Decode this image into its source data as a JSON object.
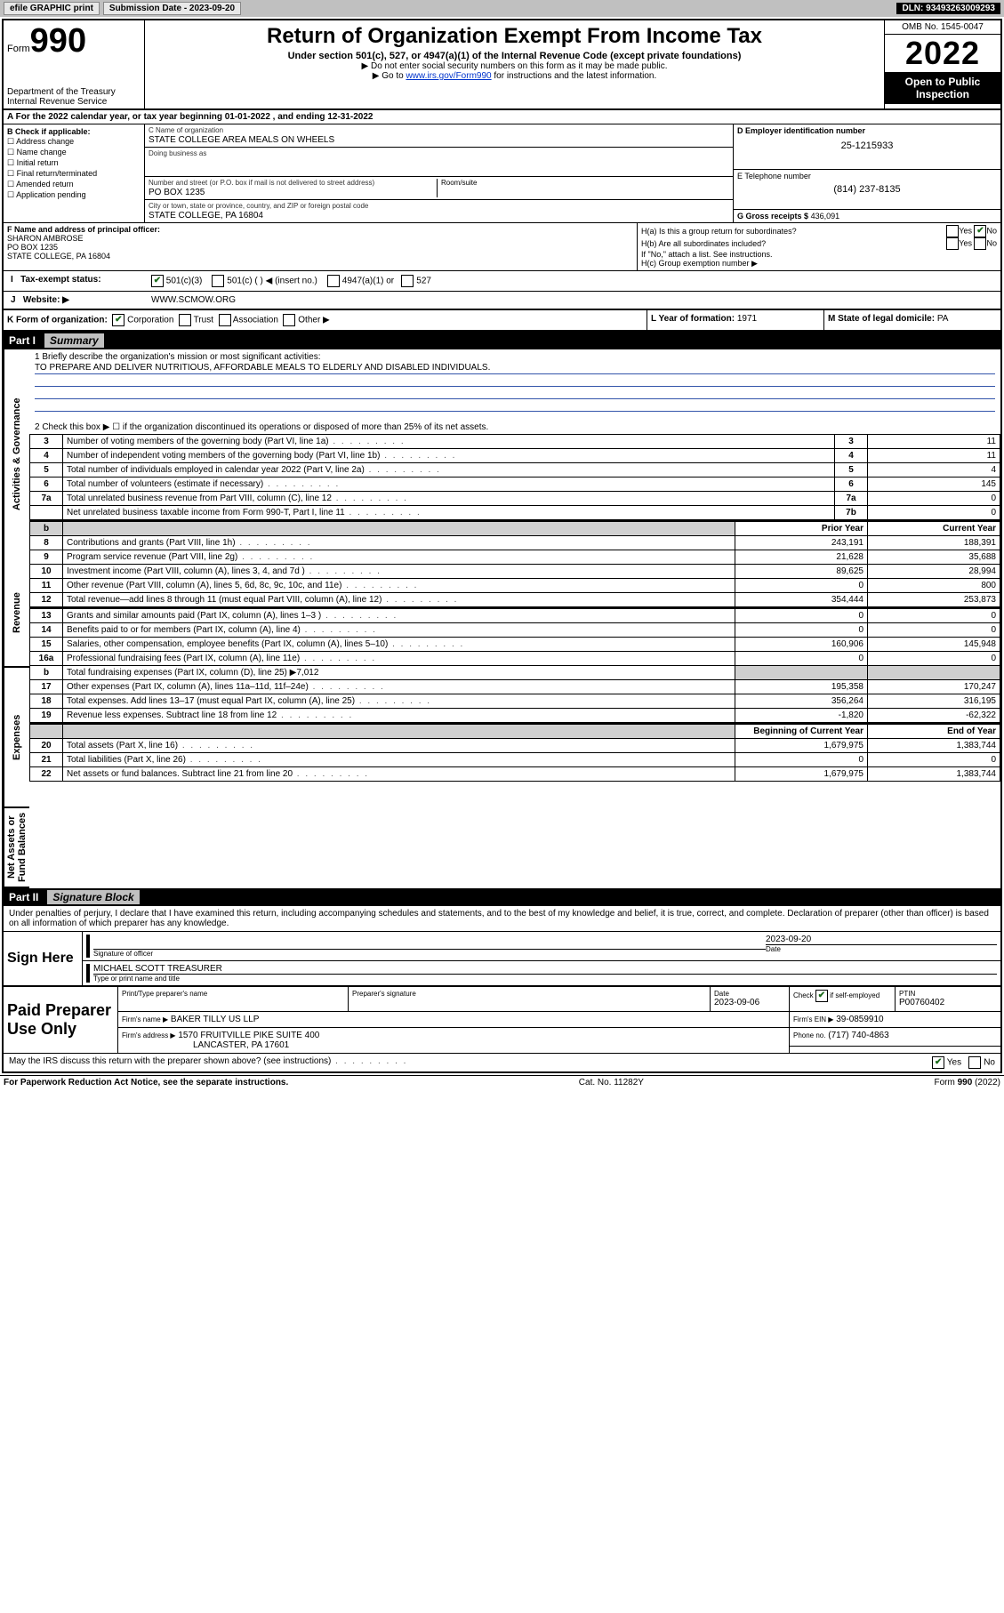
{
  "topbar": {
    "efile": "efile GRAPHIC print",
    "submission_label": "Submission Date - 2023-09-20",
    "dln": "DLN: 93493263009293"
  },
  "header": {
    "form_word": "Form",
    "form_number": "990",
    "dept": "Department of the Treasury",
    "irs": "Internal Revenue Service",
    "title": "Return of Organization Exempt From Income Tax",
    "subtitle": "Under section 501(c), 527, or 4947(a)(1) of the Internal Revenue Code (except private foundations)",
    "note1": "▶ Do not enter social security numbers on this form as it may be made public.",
    "note2_pre": "▶ Go to ",
    "note2_link": "www.irs.gov/Form990",
    "note2_post": " for instructions and the latest information.",
    "omb": "OMB No. 1545-0047",
    "year": "2022",
    "open": "Open to Public Inspection"
  },
  "row_a": "A For the 2022 calendar year, or tax year beginning 01-01-2022    , and ending 12-31-2022",
  "b": {
    "heading": "B Check if applicable:",
    "opts": [
      "Address change",
      "Name change",
      "Initial return",
      "Final return/terminated",
      "Amended return",
      "Application pending"
    ]
  },
  "c": {
    "name_label": "C Name of organization",
    "name": "STATE COLLEGE AREA MEALS ON WHEELS",
    "dba_label": "Doing business as",
    "dba": "",
    "street_label": "Number and street (or P.O. box if mail is not delivered to street address)",
    "room_label": "Room/suite",
    "street": "PO BOX 1235",
    "city_label": "City or town, state or province, country, and ZIP or foreign postal code",
    "city": "STATE COLLEGE, PA  16804"
  },
  "d": {
    "label": "D Employer identification number",
    "val": "25-1215933"
  },
  "e": {
    "label": "E Telephone number",
    "val": "(814) 237-8135"
  },
  "g": {
    "label": "G Gross receipts $",
    "val": "436,091"
  },
  "f": {
    "label": "F  Name and address of principal officer:",
    "name": "SHARON AMBROSE",
    "addr1": "PO BOX 1235",
    "addr2": "STATE COLLEGE, PA  16804"
  },
  "h": {
    "a": "H(a)  Is this a group return for subordinates?",
    "b": "H(b)  Are all subordinates included?",
    "b_note": "If \"No,\" attach a list. See instructions.",
    "c": "H(c)  Group exemption number ▶",
    "yes": "Yes",
    "no": "No"
  },
  "i": {
    "label": "Tax-exempt status:",
    "opts": [
      "501(c)(3)",
      "501(c) (  ) ◀ (insert no.)",
      "4947(a)(1) or",
      "527"
    ]
  },
  "j": {
    "label": "Website: ▶",
    "val": "WWW.SCMOW.ORG"
  },
  "k": {
    "label": "K Form of organization:",
    "opts": [
      "Corporation",
      "Trust",
      "Association",
      "Other ▶"
    ]
  },
  "l": {
    "label": "L Year of formation:",
    "val": "1971"
  },
  "m": {
    "label": "M State of legal domicile:",
    "val": "PA"
  },
  "part1": {
    "tag": "Part I",
    "name": "Summary",
    "sections": {
      "ag": "Activities & Governance",
      "rev": "Revenue",
      "exp": "Expenses",
      "na": "Net Assets or Fund Balances"
    },
    "line1_label": "1  Briefly describe the organization's mission or most significant activities:",
    "mission": "TO PREPARE AND DELIVER NUTRITIOUS, AFFORDABLE MEALS TO ELDERLY AND DISABLED INDIVIDUALS.",
    "line2": "2   Check this box ▶ ☐  if the organization discontinued its operations or disposed of more than 25% of its net assets.",
    "rows_ag": [
      {
        "n": "3",
        "label": "Number of voting members of the governing body (Part VI, line 1a)",
        "box": "3",
        "val": "11"
      },
      {
        "n": "4",
        "label": "Number of independent voting members of the governing body (Part VI, line 1b)",
        "box": "4",
        "val": "11"
      },
      {
        "n": "5",
        "label": "Total number of individuals employed in calendar year 2022 (Part V, line 2a)",
        "box": "5",
        "val": "4"
      },
      {
        "n": "6",
        "label": "Total number of volunteers (estimate if necessary)",
        "box": "6",
        "val": "145"
      },
      {
        "n": "7a",
        "label": "Total unrelated business revenue from Part VIII, column (C), line 12",
        "box": "7a",
        "val": "0"
      },
      {
        "n": "",
        "label": "Net unrelated business taxable income from Form 990-T, Part I, line 11",
        "box": "7b",
        "val": "0"
      }
    ],
    "col_headers": {
      "b": "b",
      "prior": "Prior Year",
      "current": "Current Year",
      "boy": "Beginning of Current Year",
      "eoy": "End of Year"
    },
    "rows_rev": [
      {
        "n": "8",
        "label": "Contributions and grants (Part VIII, line 1h)",
        "prior": "243,191",
        "cur": "188,391"
      },
      {
        "n": "9",
        "label": "Program service revenue (Part VIII, line 2g)",
        "prior": "21,628",
        "cur": "35,688"
      },
      {
        "n": "10",
        "label": "Investment income (Part VIII, column (A), lines 3, 4, and 7d )",
        "prior": "89,625",
        "cur": "28,994"
      },
      {
        "n": "11",
        "label": "Other revenue (Part VIII, column (A), lines 5, 6d, 8c, 9c, 10c, and 11e)",
        "prior": "0",
        "cur": "800"
      },
      {
        "n": "12",
        "label": "Total revenue—add lines 8 through 11 (must equal Part VIII, column (A), line 12)",
        "prior": "354,444",
        "cur": "253,873"
      }
    ],
    "rows_exp": [
      {
        "n": "13",
        "label": "Grants and similar amounts paid (Part IX, column (A), lines 1–3 )",
        "prior": "0",
        "cur": "0"
      },
      {
        "n": "14",
        "label": "Benefits paid to or for members (Part IX, column (A), line 4)",
        "prior": "0",
        "cur": "0"
      },
      {
        "n": "15",
        "label": "Salaries, other compensation, employee benefits (Part IX, column (A), lines 5–10)",
        "prior": "160,906",
        "cur": "145,948"
      },
      {
        "n": "16a",
        "label": "Professional fundraising fees (Part IX, column (A), line 11e)",
        "prior": "0",
        "cur": "0"
      }
    ],
    "row_16b": {
      "n": "b",
      "label": "Total fundraising expenses (Part IX, column (D), line 25) ▶7,012"
    },
    "rows_exp2": [
      {
        "n": "17",
        "label": "Other expenses (Part IX, column (A), lines 11a–11d, 11f–24e)",
        "prior": "195,358",
        "cur": "170,247"
      },
      {
        "n": "18",
        "label": "Total expenses. Add lines 13–17 (must equal Part IX, column (A), line 25)",
        "prior": "356,264",
        "cur": "316,195"
      },
      {
        "n": "19",
        "label": "Revenue less expenses. Subtract line 18 from line 12",
        "prior": "-1,820",
        "cur": "-62,322"
      }
    ],
    "rows_na": [
      {
        "n": "20",
        "label": "Total assets (Part X, line 16)",
        "prior": "1,679,975",
        "cur": "1,383,744"
      },
      {
        "n": "21",
        "label": "Total liabilities (Part X, line 26)",
        "prior": "0",
        "cur": "0"
      },
      {
        "n": "22",
        "label": "Net assets or fund balances. Subtract line 21 from line 20",
        "prior": "1,679,975",
        "cur": "1,383,744"
      }
    ]
  },
  "part2": {
    "tag": "Part II",
    "name": "Signature Block",
    "declaration": "Under penalties of perjury, I declare that I have examined this return, including accompanying schedules and statements, and to the best of my knowledge and belief, it is true, correct, and complete. Declaration of preparer (other than officer) is based on all information of which preparer has any knowledge.",
    "sign_here": "Sign Here",
    "sig_officer": "Signature of officer",
    "sig_date": "2023-09-20",
    "date_label": "Date",
    "officer_name": "MICHAEL SCOTT TREASURER",
    "officer_sub": "Type or print name and title",
    "paid": "Paid Preparer Use Only",
    "prep_name_label": "Print/Type preparer's name",
    "prep_sig_label": "Preparer's signature",
    "prep_date_label": "Date",
    "prep_date": "2023-09-06",
    "check_self": "Check ☑ if self-employed",
    "ptin_label": "PTIN",
    "ptin": "P00760402",
    "firm_name_label": "Firm's name    ▶",
    "firm_name": "BAKER TILLY US LLP",
    "firm_ein_label": "Firm's EIN ▶",
    "firm_ein": "39-0859910",
    "firm_addr_label": "Firm's address ▶",
    "firm_addr1": "1570 FRUITVILLE PIKE SUITE 400",
    "firm_addr2": "LANCASTER, PA  17601",
    "phone_label": "Phone no.",
    "phone": "(717) 740-4863",
    "discuss": "May the IRS discuss this return with the preparer shown above? (see instructions)",
    "yes": "Yes",
    "no": "No"
  },
  "footer": {
    "pra": "For Paperwork Reduction Act Notice, see the separate instructions.",
    "cat": "Cat. No. 11282Y",
    "form": "Form 990 (2022)"
  }
}
